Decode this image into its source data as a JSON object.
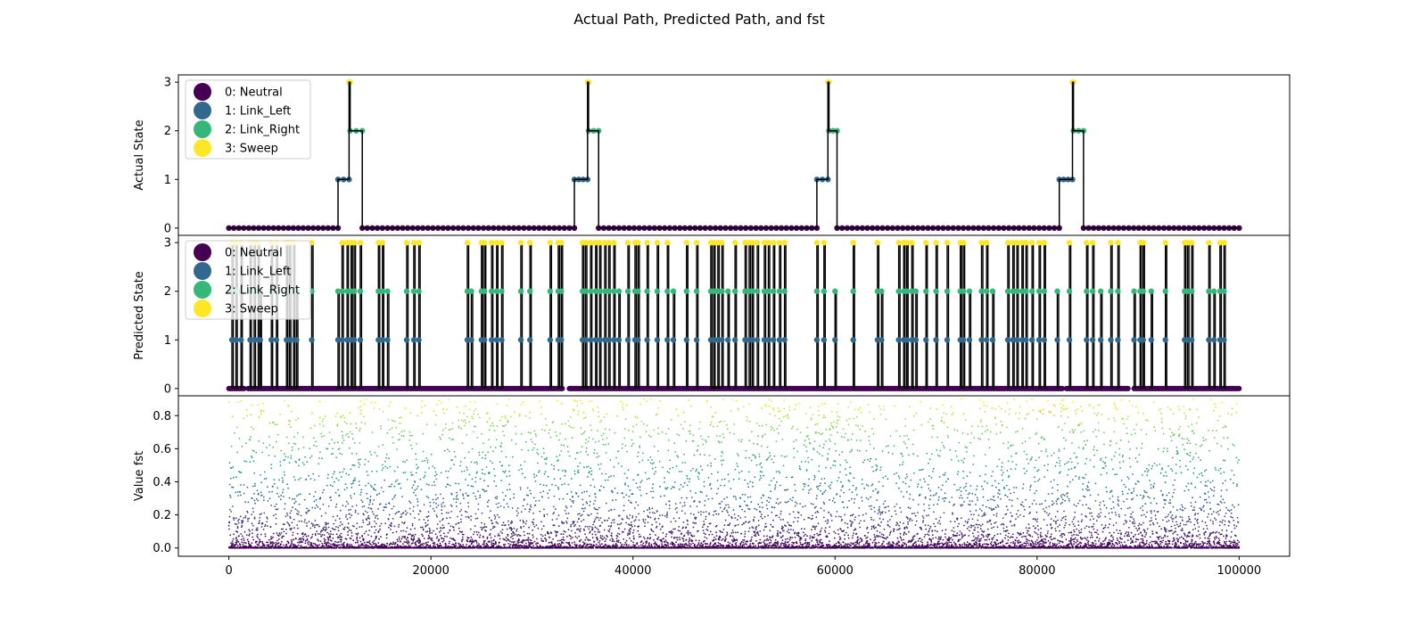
{
  "figure": {
    "title": "Actual Path, Predicted Path, and fst"
  },
  "chart_data": [
    {
      "type": "line",
      "panel": "actual",
      "ylabel": "Actual State",
      "xlim": [
        -5000,
        105000
      ],
      "ylim": [
        -0.15,
        3.15
      ],
      "yticks": [
        0,
        1,
        2,
        3
      ],
      "show_x_ticks": false,
      "legend": {
        "placement": "top-left",
        "entries": [
          {
            "label": "0: Neutral",
            "color": "#440154"
          },
          {
            "label": "1: Link_Left",
            "color": "#31688e"
          },
          {
            "label": "2: Link_Right",
            "color": "#35b779"
          },
          {
            "label": "3: Sweep",
            "color": "#fde725"
          }
        ]
      },
      "segments": [
        {
          "x": [
            0,
            10800
          ],
          "state": 0
        },
        {
          "x": [
            10800,
            11900
          ],
          "state": 1
        },
        {
          "x": [
            11900,
            12000
          ],
          "state": 3
        },
        {
          "x": [
            12000,
            13200
          ],
          "state": 2
        },
        {
          "x": [
            13200,
            34200
          ],
          "state": 0
        },
        {
          "x": [
            34200,
            35500
          ],
          "state": 1
        },
        {
          "x": [
            35500,
            35600
          ],
          "state": 3
        },
        {
          "x": [
            35600,
            36600
          ],
          "state": 2
        },
        {
          "x": [
            36600,
            58200
          ],
          "state": 0
        },
        {
          "x": [
            58200,
            59300
          ],
          "state": 1
        },
        {
          "x": [
            59300,
            59400
          ],
          "state": 3
        },
        {
          "x": [
            59400,
            60200
          ],
          "state": 2
        },
        {
          "x": [
            60200,
            82200
          ],
          "state": 0
        },
        {
          "x": [
            82200,
            83500
          ],
          "state": 1
        },
        {
          "x": [
            83500,
            83600
          ],
          "state": 3
        },
        {
          "x": [
            83600,
            84600
          ],
          "state": 2
        },
        {
          "x": [
            84600,
            100000
          ],
          "state": 0
        }
      ]
    },
    {
      "type": "line",
      "panel": "predicted",
      "ylabel": "Predicted State",
      "xlim": [
        -5000,
        105000
      ],
      "ylim": [
        -0.15,
        3.15
      ],
      "yticks": [
        0,
        1,
        2,
        3
      ],
      "show_x_ticks": false,
      "legend": {
        "placement": "top-left",
        "entries": [
          {
            "label": "0: Neutral",
            "color": "#440154"
          },
          {
            "label": "1: Link_Left",
            "color": "#31688e"
          },
          {
            "label": "2: Link_Right",
            "color": "#35b779"
          },
          {
            "label": "3: Sweep",
            "color": "#fde725"
          }
        ]
      },
      "zero_baseline_gaps": [
        [
          1500,
          1900
        ],
        [
          33000,
          33700
        ],
        [
          82500,
          82900
        ],
        [
          89000,
          89600
        ]
      ],
      "spikes": [
        {
          "x": 300,
          "peak": 3
        },
        {
          "x": 700,
          "peak": 3
        },
        {
          "x": 1200,
          "peak": 3
        },
        {
          "x": 2100,
          "peak": 3
        },
        {
          "x": 2500,
          "peak": 3
        },
        {
          "x": 2900,
          "peak": 3
        },
        {
          "x": 3100,
          "peak": 2
        },
        {
          "x": 4200,
          "peak": 3
        },
        {
          "x": 4700,
          "peak": 3
        },
        {
          "x": 5700,
          "peak": 3
        },
        {
          "x": 6000,
          "peak": 3
        },
        {
          "x": 6400,
          "peak": 3
        },
        {
          "x": 6700,
          "peak": 2
        },
        {
          "x": 8200,
          "peak": 3
        },
        {
          "x": 10800,
          "peak": 2
        },
        {
          "x": 11200,
          "peak": 3
        },
        {
          "x": 11700,
          "peak": 3
        },
        {
          "x": 12100,
          "peak": 3
        },
        {
          "x": 12400,
          "peak": 3
        },
        {
          "x": 13000,
          "peak": 3
        },
        {
          "x": 14800,
          "peak": 3
        },
        {
          "x": 15200,
          "peak": 3
        },
        {
          "x": 15700,
          "peak": 2
        },
        {
          "x": 17600,
          "peak": 3
        },
        {
          "x": 18300,
          "peak": 3
        },
        {
          "x": 18800,
          "peak": 3
        },
        {
          "x": 23600,
          "peak": 3
        },
        {
          "x": 24000,
          "peak": 2
        },
        {
          "x": 25000,
          "peak": 3
        },
        {
          "x": 25300,
          "peak": 3
        },
        {
          "x": 26000,
          "peak": 3
        },
        {
          "x": 26500,
          "peak": 3
        },
        {
          "x": 27000,
          "peak": 3
        },
        {
          "x": 28900,
          "peak": 3
        },
        {
          "x": 29800,
          "peak": 3
        },
        {
          "x": 31800,
          "peak": 3
        },
        {
          "x": 32600,
          "peak": 3
        },
        {
          "x": 32900,
          "peak": 3
        },
        {
          "x": 35000,
          "peak": 3
        },
        {
          "x": 35300,
          "peak": 3
        },
        {
          "x": 35800,
          "peak": 3
        },
        {
          "x": 36300,
          "peak": 3
        },
        {
          "x": 36700,
          "peak": 3
        },
        {
          "x": 37200,
          "peak": 3
        },
        {
          "x": 37600,
          "peak": 3
        },
        {
          "x": 38100,
          "peak": 3
        },
        {
          "x": 38600,
          "peak": 2
        },
        {
          "x": 39500,
          "peak": 3
        },
        {
          "x": 40200,
          "peak": 3
        },
        {
          "x": 40500,
          "peak": 3
        },
        {
          "x": 41400,
          "peak": 3
        },
        {
          "x": 42400,
          "peak": 3
        },
        {
          "x": 43400,
          "peak": 3
        },
        {
          "x": 44000,
          "peak": 2
        },
        {
          "x": 45300,
          "peak": 3
        },
        {
          "x": 46300,
          "peak": 3
        },
        {
          "x": 47700,
          "peak": 3
        },
        {
          "x": 48000,
          "peak": 3
        },
        {
          "x": 48400,
          "peak": 3
        },
        {
          "x": 48800,
          "peak": 3
        },
        {
          "x": 49400,
          "peak": 2
        },
        {
          "x": 50100,
          "peak": 3
        },
        {
          "x": 51100,
          "peak": 3
        },
        {
          "x": 51500,
          "peak": 3
        },
        {
          "x": 51800,
          "peak": 3
        },
        {
          "x": 52300,
          "peak": 3
        },
        {
          "x": 53000,
          "peak": 3
        },
        {
          "x": 53400,
          "peak": 3
        },
        {
          "x": 53900,
          "peak": 3
        },
        {
          "x": 54500,
          "peak": 3
        },
        {
          "x": 55000,
          "peak": 3
        },
        {
          "x": 58200,
          "peak": 3
        },
        {
          "x": 58900,
          "peak": 3
        },
        {
          "x": 60000,
          "peak": 2
        },
        {
          "x": 61800,
          "peak": 3
        },
        {
          "x": 64200,
          "peak": 3
        },
        {
          "x": 64600,
          "peak": 2
        },
        {
          "x": 66300,
          "peak": 3
        },
        {
          "x": 66800,
          "peak": 3
        },
        {
          "x": 67100,
          "peak": 3
        },
        {
          "x": 67600,
          "peak": 3
        },
        {
          "x": 68000,
          "peak": 2
        },
        {
          "x": 69000,
          "peak": 3
        },
        {
          "x": 70000,
          "peak": 3
        },
        {
          "x": 71100,
          "peak": 3
        },
        {
          "x": 72400,
          "peak": 3
        },
        {
          "x": 72700,
          "peak": 3
        },
        {
          "x": 73300,
          "peak": 2
        },
        {
          "x": 74500,
          "peak": 3
        },
        {
          "x": 75000,
          "peak": 3
        },
        {
          "x": 75600,
          "peak": 2
        },
        {
          "x": 77100,
          "peak": 3
        },
        {
          "x": 77600,
          "peak": 3
        },
        {
          "x": 78000,
          "peak": 3
        },
        {
          "x": 78500,
          "peak": 3
        },
        {
          "x": 78900,
          "peak": 3
        },
        {
          "x": 79500,
          "peak": 3
        },
        {
          "x": 80200,
          "peak": 3
        },
        {
          "x": 80700,
          "peak": 3
        },
        {
          "x": 82000,
          "peak": 2
        },
        {
          "x": 83200,
          "peak": 3
        },
        {
          "x": 84900,
          "peak": 3
        },
        {
          "x": 85500,
          "peak": 3
        },
        {
          "x": 86300,
          "peak": 2
        },
        {
          "x": 87300,
          "peak": 3
        },
        {
          "x": 88000,
          "peak": 3
        },
        {
          "x": 89600,
          "peak": 2
        },
        {
          "x": 90200,
          "peak": 3
        },
        {
          "x": 90500,
          "peak": 3
        },
        {
          "x": 91300,
          "peak": 2
        },
        {
          "x": 92700,
          "peak": 3
        },
        {
          "x": 94600,
          "peak": 3
        },
        {
          "x": 94900,
          "peak": 3
        },
        {
          "x": 95300,
          "peak": 3
        },
        {
          "x": 97000,
          "peak": 3
        },
        {
          "x": 97500,
          "peak": 2
        },
        {
          "x": 98100,
          "peak": 3
        },
        {
          "x": 98500,
          "peak": 3
        }
      ]
    },
    {
      "type": "scatter",
      "panel": "fst",
      "ylabel": "Value fst",
      "xlim": [
        -5000,
        105000
      ],
      "ylim": [
        -0.05,
        0.92
      ],
      "yticks": [
        0.0,
        0.2,
        0.4,
        0.6,
        0.8
      ],
      "ytick_labels": [
        "0.0",
        "0.2",
        "0.4",
        "0.6",
        "0.8"
      ],
      "xticks": [
        0,
        20000,
        40000,
        60000,
        80000,
        100000
      ],
      "xtick_labels": [
        "0",
        "20000",
        "40000",
        "60000",
        "80000",
        "100000"
      ],
      "colormap": "viridis",
      "n_points": 10000,
      "value_range": [
        0.0,
        0.9
      ],
      "elevated_regions": [
        12000,
        35500,
        54000,
        59400,
        83500,
        94500
      ]
    }
  ]
}
